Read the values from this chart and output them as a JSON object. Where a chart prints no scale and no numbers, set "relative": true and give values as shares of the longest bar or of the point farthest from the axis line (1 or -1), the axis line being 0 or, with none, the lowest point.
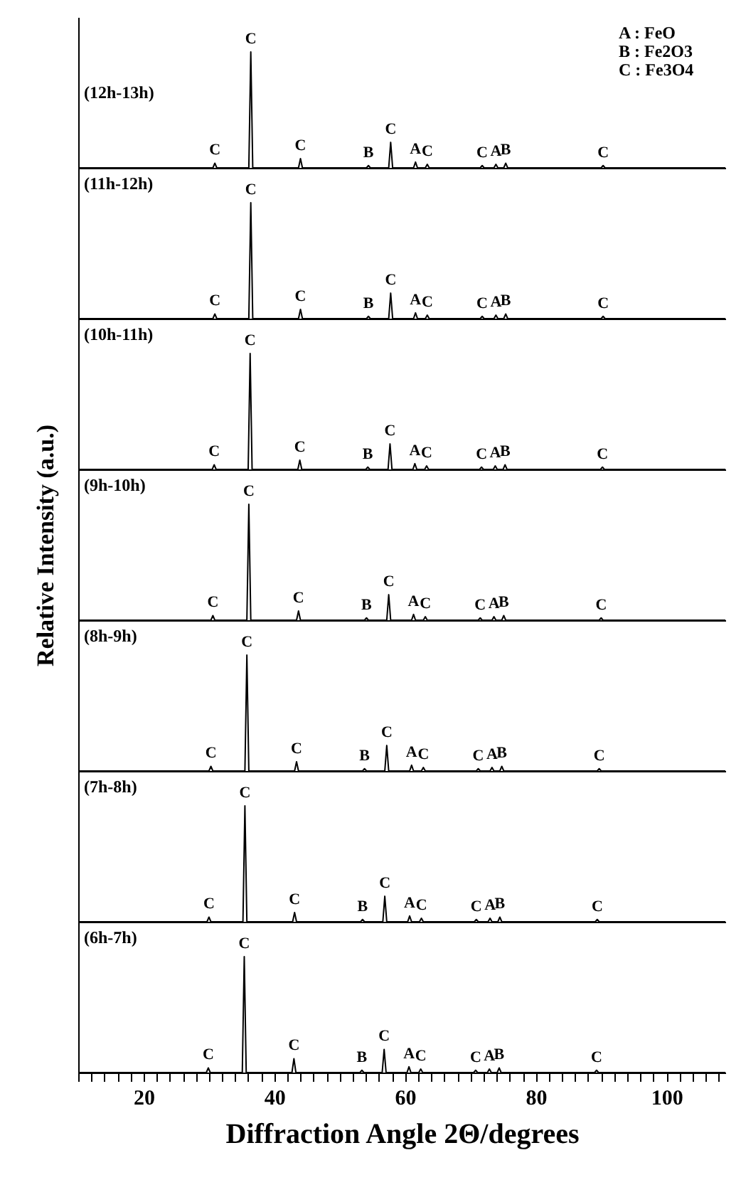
{
  "chart_data": [
    {
      "type": "line",
      "title": "(12h-13h)",
      "relative": true,
      "xlim": [
        10,
        109
      ],
      "tick_labels": false,
      "annotations": [
        "A : FeO",
        "B : Fe2O3",
        "C : Fe3O4",
        {
          "text": "C",
          "x": 30.9,
          "y": 0.04
        },
        {
          "text": "C",
          "x": 36.4,
          "y": 1
        },
        {
          "text": "C",
          "x": 44.0,
          "y": 0.08
        },
        {
          "text": "B",
          "x": 54.4,
          "y": 0.02
        },
        {
          "text": "C",
          "x": 57.8,
          "y": 0.22
        },
        {
          "text": "A",
          "x": 61.6,
          "y": 0.05
        },
        {
          "text": "C",
          "x": 63.4,
          "y": 0.03
        },
        {
          "text": "C",
          "x": 71.8,
          "y": 0.02
        },
        {
          "text": "A",
          "x": 73.9,
          "y": 0.03
        },
        {
          "text": "B",
          "x": 75.4,
          "y": 0.04
        },
        {
          "text": "C",
          "x": 90.3,
          "y": 0.02
        }
      ],
      "series": [
        {
          "color": "#000000",
          "x": [
            10,
            30.6,
            30.9,
            31.2,
            36.1,
            36.4,
            36.7,
            43.7,
            44.0,
            44.3,
            54.1,
            54.4,
            54.7,
            57.5,
            57.8,
            58.1,
            61.3,
            61.6,
            61.9,
            63.1,
            63.4,
            63.7,
            71.5,
            71.8,
            72.1,
            73.6,
            73.9,
            74.2,
            75.1,
            75.4,
            75.7,
            90.0,
            90.3,
            90.6,
            109
          ],
          "values": [
            0,
            0,
            0.04,
            0,
            0,
            1,
            0,
            0,
            0.08,
            0,
            0,
            0.02,
            0,
            0,
            0.22,
            0,
            0,
            0.05,
            0,
            0,
            0.03,
            0,
            0,
            0.02,
            0,
            0,
            0.03,
            0,
            0,
            0.04,
            0,
            0,
            0.02,
            0,
            0
          ]
        }
      ]
    },
    {
      "type": "line",
      "title": "(11h-12h)",
      "relative": true,
      "xlim": [
        10,
        109
      ],
      "tick_labels": false,
      "annotations": [
        {
          "text": "C",
          "x": 30.9,
          "y": 0.04
        },
        {
          "text": "C",
          "x": 36.4,
          "y": 1
        },
        {
          "text": "C",
          "x": 44.0,
          "y": 0.08
        },
        {
          "text": "B",
          "x": 54.4,
          "y": 0.02
        },
        {
          "text": "C",
          "x": 57.8,
          "y": 0.22
        },
        {
          "text": "A",
          "x": 61.6,
          "y": 0.05
        },
        {
          "text": "C",
          "x": 63.4,
          "y": 0.03
        },
        {
          "text": "C",
          "x": 71.8,
          "y": 0.02
        },
        {
          "text": "A",
          "x": 73.9,
          "y": 0.03
        },
        {
          "text": "B",
          "x": 75.4,
          "y": 0.04
        },
        {
          "text": "C",
          "x": 90.3,
          "y": 0.02
        }
      ],
      "series": [
        {
          "color": "#000000",
          "x": [
            10,
            30.6,
            30.9,
            31.2,
            36.1,
            36.4,
            36.7,
            43.7,
            44.0,
            44.3,
            54.1,
            54.4,
            54.7,
            57.5,
            57.8,
            58.1,
            61.3,
            61.6,
            61.9,
            63.1,
            63.4,
            63.7,
            71.5,
            71.8,
            72.1,
            73.6,
            73.9,
            74.2,
            75.1,
            75.4,
            75.7,
            90.0,
            90.3,
            90.6,
            109
          ],
          "values": [
            0,
            0,
            0.04,
            0,
            0,
            1,
            0,
            0,
            0.08,
            0,
            0,
            0.02,
            0,
            0,
            0.22,
            0,
            0,
            0.05,
            0,
            0,
            0.03,
            0,
            0,
            0.02,
            0,
            0,
            0.03,
            0,
            0,
            0.04,
            0,
            0,
            0.02,
            0,
            0
          ]
        }
      ]
    },
    {
      "type": "line",
      "title": "(10h-11h)",
      "relative": true,
      "xlim": [
        10,
        109
      ],
      "tick_labels": false,
      "annotations": [
        {
          "text": "C",
          "x": 30.8,
          "y": 0.04
        },
        {
          "text": "C",
          "x": 36.3,
          "y": 1
        },
        {
          "text": "C",
          "x": 43.9,
          "y": 0.08
        },
        {
          "text": "B",
          "x": 54.3,
          "y": 0.02
        },
        {
          "text": "C",
          "x": 57.7,
          "y": 0.22
        },
        {
          "text": "A",
          "x": 61.5,
          "y": 0.05
        },
        {
          "text": "C",
          "x": 63.3,
          "y": 0.03
        },
        {
          "text": "C",
          "x": 71.7,
          "y": 0.02
        },
        {
          "text": "A",
          "x": 73.8,
          "y": 0.03
        },
        {
          "text": "B",
          "x": 75.3,
          "y": 0.04
        },
        {
          "text": "C",
          "x": 90.2,
          "y": 0.02
        }
      ],
      "series": [
        {
          "color": "#000000",
          "x": [
            10,
            30.5,
            30.8,
            31.1,
            36.0,
            36.3,
            36.6,
            43.6,
            43.9,
            44.2,
            54.0,
            54.3,
            54.6,
            57.4,
            57.7,
            58.0,
            61.2,
            61.5,
            61.8,
            63.0,
            63.3,
            63.6,
            71.4,
            71.7,
            72.0,
            73.5,
            73.8,
            74.1,
            75.0,
            75.3,
            75.6,
            89.9,
            90.2,
            90.5,
            109
          ],
          "values": [
            0,
            0,
            0.04,
            0,
            0,
            1,
            0,
            0,
            0.08,
            0,
            0,
            0.02,
            0,
            0,
            0.22,
            0,
            0,
            0.05,
            0,
            0,
            0.03,
            0,
            0,
            0.02,
            0,
            0,
            0.03,
            0,
            0,
            0.04,
            0,
            0,
            0.02,
            0,
            0
          ]
        }
      ]
    },
    {
      "type": "line",
      "title": "(9h-10h)",
      "ylabel": "Relative Intensity (a.u.)",
      "relative": true,
      "xlim": [
        10,
        109
      ],
      "tick_labels": false,
      "annotations": [
        {
          "text": "C",
          "x": 30.6,
          "y": 0.04
        },
        {
          "text": "C",
          "x": 36.1,
          "y": 1
        },
        {
          "text": "C",
          "x": 43.7,
          "y": 0.08
        },
        {
          "text": "B",
          "x": 54.1,
          "y": 0.02
        },
        {
          "text": "C",
          "x": 57.5,
          "y": 0.22
        },
        {
          "text": "A",
          "x": 61.3,
          "y": 0.05
        },
        {
          "text": "C",
          "x": 63.1,
          "y": 0.03
        },
        {
          "text": "C",
          "x": 71.5,
          "y": 0.02
        },
        {
          "text": "A",
          "x": 73.6,
          "y": 0.03
        },
        {
          "text": "B",
          "x": 75.1,
          "y": 0.04
        },
        {
          "text": "C",
          "x": 90.0,
          "y": 0.02
        }
      ],
      "series": [
        {
          "color": "#000000",
          "x": [
            10,
            30.3,
            30.6,
            30.9,
            35.8,
            36.1,
            36.4,
            43.4,
            43.7,
            44.0,
            53.8,
            54.1,
            54.4,
            57.2,
            57.5,
            57.8,
            61.0,
            61.3,
            61.6,
            62.8,
            63.1,
            63.4,
            71.2,
            71.5,
            71.8,
            73.3,
            73.6,
            73.9,
            74.8,
            75.1,
            75.4,
            89.7,
            90.0,
            90.3,
            109
          ],
          "values": [
            0,
            0,
            0.04,
            0,
            0,
            1,
            0,
            0,
            0.08,
            0,
            0,
            0.02,
            0,
            0,
            0.22,
            0,
            0,
            0.05,
            0,
            0,
            0.03,
            0,
            0,
            0.02,
            0,
            0,
            0.03,
            0,
            0,
            0.04,
            0,
            0,
            0.02,
            0,
            0
          ]
        }
      ]
    },
    {
      "type": "line",
      "title": "(8h-9h)",
      "relative": true,
      "xlim": [
        10,
        109
      ],
      "tick_labels": false,
      "annotations": [
        {
          "text": "C",
          "x": 30.3,
          "y": 0.04
        },
        {
          "text": "C",
          "x": 35.8,
          "y": 1
        },
        {
          "text": "C",
          "x": 43.4,
          "y": 0.08
        },
        {
          "text": "B",
          "x": 53.8,
          "y": 0.02
        },
        {
          "text": "C",
          "x": 57.2,
          "y": 0.22
        },
        {
          "text": "A",
          "x": 61.0,
          "y": 0.05
        },
        {
          "text": "C",
          "x": 62.8,
          "y": 0.03
        },
        {
          "text": "C",
          "x": 71.2,
          "y": 0.02
        },
        {
          "text": "A",
          "x": 73.3,
          "y": 0.03
        },
        {
          "text": "B",
          "x": 74.8,
          "y": 0.04
        },
        {
          "text": "C",
          "x": 89.7,
          "y": 0.02
        }
      ],
      "series": [
        {
          "color": "#000000",
          "x": [
            10,
            30.0,
            30.3,
            30.6,
            35.5,
            35.8,
            36.1,
            43.1,
            43.4,
            43.7,
            53.5,
            53.8,
            54.1,
            56.9,
            57.2,
            57.5,
            60.7,
            61.0,
            61.3,
            62.5,
            62.8,
            63.1,
            70.9,
            71.2,
            71.5,
            73.0,
            73.3,
            73.6,
            74.5,
            74.8,
            75.1,
            89.4,
            89.7,
            90.0,
            109
          ],
          "values": [
            0,
            0,
            0.04,
            0,
            0,
            1,
            0,
            0,
            0.08,
            0,
            0,
            0.02,
            0,
            0,
            0.22,
            0,
            0,
            0.05,
            0,
            0,
            0.03,
            0,
            0,
            0.02,
            0,
            0,
            0.03,
            0,
            0,
            0.04,
            0,
            0,
            0.02,
            0,
            0
          ]
        }
      ]
    },
    {
      "type": "line",
      "title": "(7h-8h)",
      "relative": true,
      "xlim": [
        10,
        109
      ],
      "tick_labels": false,
      "annotations": [
        {
          "text": "C",
          "x": 30.0,
          "y": 0.04
        },
        {
          "text": "C",
          "x": 35.5,
          "y": 1
        },
        {
          "text": "C",
          "x": 43.1,
          "y": 0.08
        },
        {
          "text": "B",
          "x": 53.5,
          "y": 0.02
        },
        {
          "text": "C",
          "x": 56.9,
          "y": 0.22
        },
        {
          "text": "A",
          "x": 60.7,
          "y": 0.05
        },
        {
          "text": "C",
          "x": 62.5,
          "y": 0.03
        },
        {
          "text": "C",
          "x": 70.9,
          "y": 0.02
        },
        {
          "text": "A",
          "x": 73.0,
          "y": 0.03
        },
        {
          "text": "B",
          "x": 74.5,
          "y": 0.04
        },
        {
          "text": "C",
          "x": 89.4,
          "y": 0.02
        }
      ],
      "series": [
        {
          "color": "#000000",
          "x": [
            10,
            29.7,
            30.0,
            30.3,
            35.2,
            35.5,
            35.8,
            42.8,
            43.1,
            43.4,
            53.2,
            53.5,
            53.8,
            56.6,
            56.9,
            57.2,
            60.4,
            60.7,
            61.0,
            62.2,
            62.5,
            62.8,
            70.6,
            70.9,
            71.2,
            72.7,
            73.0,
            73.3,
            74.2,
            74.5,
            74.8,
            89.1,
            89.4,
            89.7,
            109
          ],
          "values": [
            0,
            0,
            0.04,
            0,
            0,
            1,
            0,
            0,
            0.08,
            0,
            0,
            0.02,
            0,
            0,
            0.22,
            0,
            0,
            0.05,
            0,
            0,
            0.03,
            0,
            0,
            0.02,
            0,
            0,
            0.03,
            0,
            0,
            0.04,
            0,
            0,
            0.02,
            0,
            0
          ]
        }
      ]
    },
    {
      "type": "line",
      "title": "(6h-7h)",
      "xlabel": "Diffraction Angle 2Θ/degrees",
      "relative": true,
      "xlim": [
        10,
        109
      ],
      "tick_labels": "x",
      "xticks": [
        {
          "value": 10,
          "label": null
        },
        {
          "value": 12,
          "label": null
        },
        {
          "value": 14,
          "label": null
        },
        {
          "value": 16,
          "label": null
        },
        {
          "value": 18,
          "label": null
        },
        20,
        {
          "value": 22,
          "label": null
        },
        {
          "value": 24,
          "label": null
        },
        {
          "value": 26,
          "label": null
        },
        {
          "value": 28,
          "label": null
        },
        {
          "value": 30,
          "label": null
        },
        {
          "value": 32,
          "label": null
        },
        {
          "value": 34,
          "label": null
        },
        {
          "value": 36,
          "label": null
        },
        {
          "value": 38,
          "label": null
        },
        40,
        {
          "value": 42,
          "label": null
        },
        {
          "value": 44,
          "label": null
        },
        {
          "value": 46,
          "label": null
        },
        {
          "value": 48,
          "label": null
        },
        {
          "value": 50,
          "label": null
        },
        {
          "value": 52,
          "label": null
        },
        {
          "value": 54,
          "label": null
        },
        {
          "value": 56,
          "label": null
        },
        {
          "value": 58,
          "label": null
        },
        60,
        {
          "value": 62,
          "label": null
        },
        {
          "value": 64,
          "label": null
        },
        {
          "value": 66,
          "label": null
        },
        {
          "value": 68,
          "label": null
        },
        {
          "value": 70,
          "label": null
        },
        {
          "value": 72,
          "label": null
        },
        {
          "value": 74,
          "label": null
        },
        {
          "value": 76,
          "label": null
        },
        {
          "value": 78,
          "label": null
        },
        80,
        {
          "value": 82,
          "label": null
        },
        {
          "value": 84,
          "label": null
        },
        {
          "value": 86,
          "label": null
        },
        {
          "value": 88,
          "label": null
        },
        {
          "value": 90,
          "label": null
        },
        {
          "value": 92,
          "label": null
        },
        {
          "value": 94,
          "label": null
        },
        {
          "value": 96,
          "label": null
        },
        {
          "value": 98,
          "label": null
        },
        100,
        {
          "value": 102,
          "label": null
        },
        {
          "value": 104,
          "label": null
        },
        {
          "value": 106,
          "label": null
        },
        {
          "value": 108,
          "label": null
        }
      ],
      "annotations": [
        {
          "text": "C",
          "x": 29.9,
          "y": 0.04
        },
        {
          "text": "C",
          "x": 35.4,
          "y": 1
        },
        {
          "text": "C",
          "x": 43.0,
          "y": 0.12
        },
        {
          "text": "B",
          "x": 53.4,
          "y": 0.02
        },
        {
          "text": "C",
          "x": 56.8,
          "y": 0.2
        },
        {
          "text": "A",
          "x": 60.6,
          "y": 0.05
        },
        {
          "text": "C",
          "x": 62.4,
          "y": 0.03
        },
        {
          "text": "C",
          "x": 70.8,
          "y": 0.02
        },
        {
          "text": "A",
          "x": 72.9,
          "y": 0.03
        },
        {
          "text": "B",
          "x": 74.4,
          "y": 0.04
        },
        {
          "text": "C",
          "x": 89.3,
          "y": 0.02
        }
      ],
      "series": [
        {
          "color": "#000000",
          "x": [
            10,
            29.6,
            29.9,
            30.2,
            35.1,
            35.4,
            35.7,
            42.7,
            43.0,
            43.3,
            53.1,
            53.4,
            53.7,
            56.5,
            56.8,
            57.1,
            60.3,
            60.6,
            60.9,
            62.1,
            62.4,
            62.7,
            70.5,
            70.8,
            71.1,
            72.6,
            72.9,
            73.2,
            74.1,
            74.4,
            74.7,
            89.0,
            89.3,
            89.6,
            109
          ],
          "values": [
            0,
            0,
            0.04,
            0,
            0,
            1,
            0,
            0,
            0.12,
            0,
            0,
            0.02,
            0,
            0,
            0.2,
            0,
            0,
            0.05,
            0,
            0,
            0.03,
            0,
            0,
            0.02,
            0,
            0,
            0.03,
            0,
            0,
            0.04,
            0,
            0,
            0.02,
            0,
            0
          ]
        }
      ]
    }
  ]
}
